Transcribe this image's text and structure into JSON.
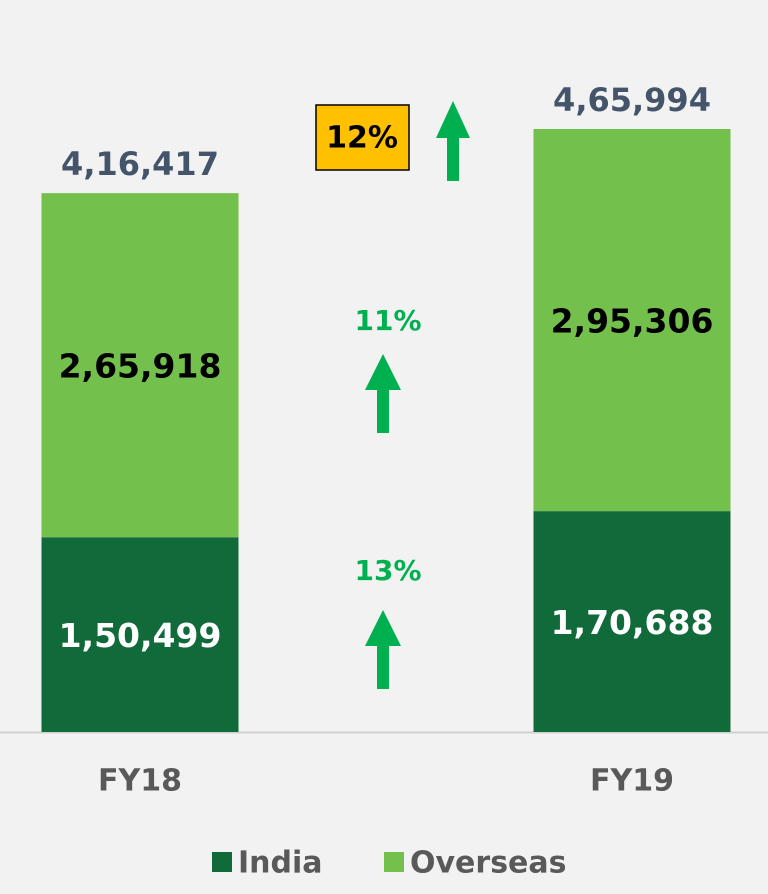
{
  "chart_data": {
    "type": "stacked_bar",
    "categories": [
      "FY18",
      "FY19"
    ],
    "series": [
      {
        "name": "India",
        "color": "#116a39",
        "values": [
          150499,
          170688
        ],
        "value_labels": [
          "1,50,499",
          "1,70,688"
        ],
        "label_color": "#ffffff"
      },
      {
        "name": "Overseas",
        "color": "#74c04c",
        "values": [
          265918,
          295306
        ],
        "value_labels": [
          "2,65,918",
          "2,95,306"
        ],
        "label_color": "#000000"
      }
    ],
    "totals": [
      416417,
      465994
    ],
    "total_labels": [
      "4,16,417",
      "4,65,994"
    ],
    "annotations": [
      "12%",
      "11%",
      "13%"
    ],
    "legend": "bottom"
  }
}
